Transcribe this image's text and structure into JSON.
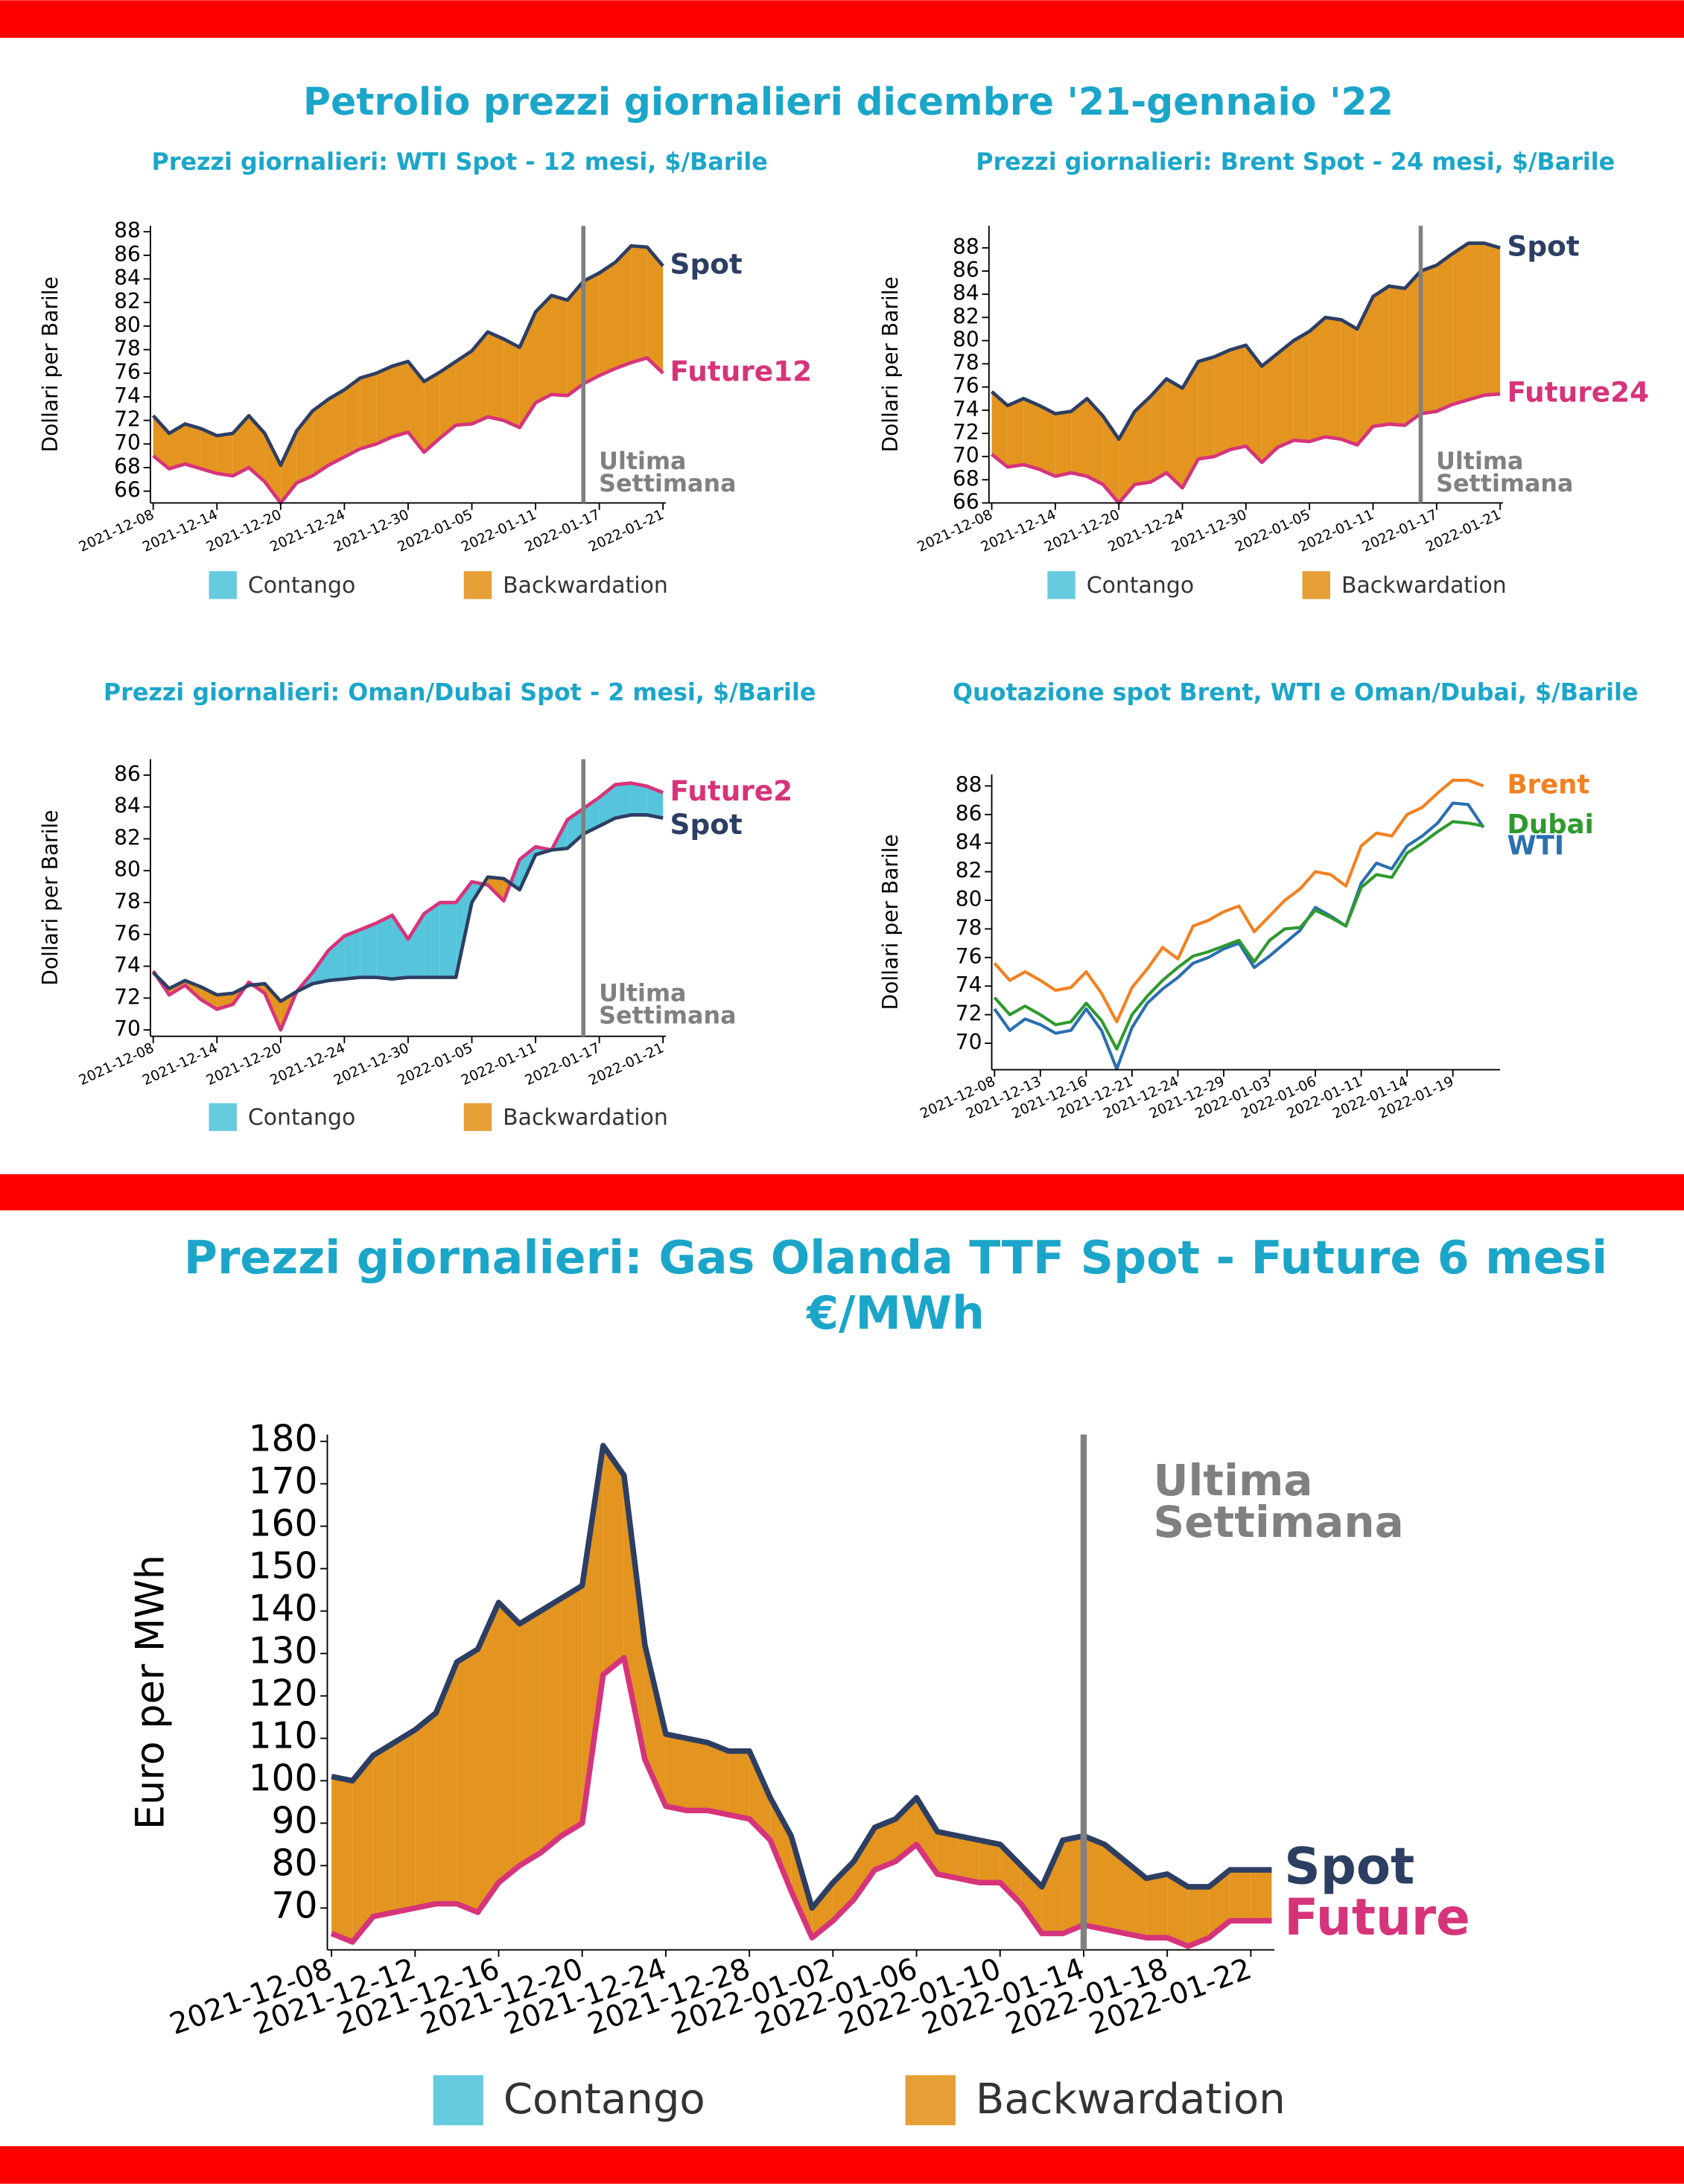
{
  "title": "Petrolio prezzi giornalieri dicembre '21-gennaio '22",
  "chart_data": [
    {
      "type": "spread",
      "title": "Prezzi giornalieri: WTI Spot - 12 mesi, $/Barile",
      "y_label": "Dollari per Barile",
      "categories": [
        "2021-12-08",
        null,
        null,
        null,
        "2021-12-14",
        null,
        null,
        null,
        "2021-12-20",
        null,
        null,
        null,
        "2021-12-24",
        null,
        null,
        null,
        "2021-12-30",
        null,
        null,
        null,
        "2022-01-05",
        null,
        null,
        null,
        "2022-01-11",
        null,
        null,
        null,
        "2022-01-17",
        null,
        null,
        null,
        "2022-01-21"
      ],
      "series": [
        {
          "name": "Spot",
          "color": "#2d3e63",
          "values": [
            72.4,
            70.9,
            71.7,
            71.3,
            70.7,
            70.9,
            72.4,
            70.9,
            68.2,
            71.1,
            72.8,
            73.8,
            74.6,
            75.6,
            76.0,
            76.6,
            77.0,
            75.3,
            76.1,
            77.0,
            77.9,
            79.5,
            78.9,
            78.2,
            81.2,
            82.6,
            82.2,
            83.8,
            84.5,
            85.4,
            86.8,
            86.7,
            85.1
          ]
        },
        {
          "name": "Future12",
          "color": "#d6347a",
          "values": [
            69.0,
            67.9,
            68.3,
            67.9,
            67.5,
            67.3,
            68.0,
            66.8,
            65.0,
            66.7,
            67.3,
            68.2,
            68.9,
            69.6,
            70.0,
            70.6,
            71.0,
            69.3,
            70.5,
            71.6,
            71.7,
            72.3,
            72.0,
            71.4,
            73.5,
            74.2,
            74.1,
            75.1,
            75.8,
            76.4,
            76.9,
            77.3,
            76.0
          ]
        }
      ],
      "ylim": [
        65,
        88.5
      ],
      "yticks": [
        66,
        68,
        70,
        72,
        74,
        76,
        78,
        80,
        82,
        84,
        86,
        88
      ],
      "annotation": [
        "Ultima",
        "Settimana"
      ],
      "legend": [
        {
          "name": "Contango",
          "color": "#56c5dc"
        },
        {
          "name": "Backwardation",
          "color": "#e39520"
        }
      ]
    },
    {
      "type": "spread",
      "title": "Prezzi giornalieri: Brent Spot - 24 mesi, $/Barile",
      "y_label": "Dollari per Barile",
      "categories": [
        "2021-12-08",
        null,
        null,
        null,
        "2021-12-14",
        null,
        null,
        null,
        "2021-12-20",
        null,
        null,
        null,
        "2021-12-24",
        null,
        null,
        null,
        "2021-12-30",
        null,
        null,
        null,
        "2022-01-05",
        null,
        null,
        null,
        "2022-01-11",
        null,
        null,
        null,
        "2022-01-17",
        null,
        null,
        null,
        "2022-01-21"
      ],
      "series": [
        {
          "name": "Spot",
          "color": "#2d3e63",
          "values": [
            75.6,
            74.4,
            75.0,
            74.4,
            73.7,
            73.9,
            75.0,
            73.5,
            71.5,
            73.9,
            75.2,
            76.7,
            75.9,
            78.2,
            78.6,
            79.2,
            79.6,
            77.8,
            78.9,
            80.0,
            80.8,
            82.0,
            81.8,
            81.0,
            83.8,
            84.7,
            84.5,
            86.0,
            86.5,
            87.5,
            88.4,
            88.4,
            88.0
          ]
        },
        {
          "name": "Future24",
          "color": "#d6347a",
          "values": [
            70.2,
            69.1,
            69.3,
            68.9,
            68.3,
            68.6,
            68.3,
            67.6,
            66.0,
            67.6,
            67.8,
            68.6,
            67.3,
            69.8,
            70.0,
            70.6,
            70.9,
            69.5,
            70.8,
            71.4,
            71.3,
            71.7,
            71.5,
            71.0,
            72.6,
            72.8,
            72.7,
            73.7,
            73.9,
            74.5,
            74.9,
            75.3,
            75.4
          ]
        }
      ],
      "ylim": [
        66,
        89.9
      ],
      "yticks": [
        66,
        68,
        70,
        72,
        74,
        76,
        78,
        80,
        82,
        84,
        86,
        88
      ],
      "annotation": [
        "Ultima",
        "Settimana"
      ],
      "legend": [
        {
          "name": "Contango",
          "color": "#56c5dc"
        },
        {
          "name": "Backwardation",
          "color": "#e39520"
        }
      ]
    },
    {
      "type": "spread",
      "title": "Prezzi giornalieri: Oman/Dubai Spot - 2 mesi, $/Barile",
      "y_label": "Dollari per Barile",
      "categories": [
        "2021-12-08",
        null,
        null,
        null,
        "2021-12-14",
        null,
        null,
        null,
        "2021-12-20",
        null,
        null,
        null,
        "2021-12-24",
        null,
        null,
        null,
        "2021-12-30",
        null,
        null,
        null,
        "2022-01-05",
        null,
        null,
        null,
        "2022-01-11",
        null,
        null,
        null,
        "2022-01-17",
        null,
        null,
        null,
        "2022-01-21"
      ],
      "series": [
        {
          "name": "Spot",
          "color": "#2d3e63",
          "values": [
            73.6,
            72.6,
            73.1,
            72.7,
            72.2,
            72.3,
            72.8,
            72.9,
            71.8,
            72.4,
            72.9,
            73.1,
            73.2,
            73.3,
            73.3,
            73.2,
            73.3,
            73.3,
            73.3,
            73.3,
            78.0,
            79.6,
            79.5,
            78.8,
            81.0,
            81.3,
            81.4,
            82.3,
            82.8,
            83.3,
            83.5,
            83.5,
            83.3
          ]
        },
        {
          "name": "Future2",
          "color": "#d6347a",
          "values": [
            73.7,
            72.2,
            72.8,
            71.9,
            71.3,
            71.6,
            73.0,
            72.3,
            70.0,
            72.4,
            73.6,
            75.0,
            75.9,
            76.3,
            76.7,
            77.2,
            75.7,
            77.3,
            78.0,
            78.0,
            79.3,
            79.1,
            78.1,
            80.7,
            81.5,
            81.3,
            83.2,
            83.9,
            84.6,
            85.4,
            85.5,
            85.3,
            84.9
          ]
        }
      ],
      "ylim": [
        69.6,
        87
      ],
      "yticks": [
        70,
        72,
        74,
        76,
        78,
        80,
        82,
        84,
        86
      ],
      "annotation": [
        "Ultima",
        "Settimana"
      ],
      "legend": [
        {
          "name": "Contango",
          "color": "#56c5dc"
        },
        {
          "name": "Backwardation",
          "color": "#e39520"
        }
      ]
    },
    {
      "type": "line",
      "title": "Quotazione spot Brent, WTI e Oman/Dubai, $/Barile",
      "y_label": "Dollari per Barile",
      "categories": [
        "2021-12-08",
        null,
        null,
        "2021-12-13",
        null,
        null,
        "2021-12-16",
        null,
        null,
        "2021-12-21",
        null,
        null,
        "2021-12-24",
        null,
        null,
        "2021-12-29",
        null,
        null,
        "2022-01-03",
        null,
        null,
        "2022-01-06",
        null,
        null,
        "2022-01-11",
        null,
        null,
        "2022-01-14",
        null,
        null,
        "2022-01-19",
        null,
        null
      ],
      "series": [
        {
          "name": "Brent",
          "color": "#f28120",
          "values": [
            75.6,
            74.4,
            75.0,
            74.4,
            73.7,
            73.9,
            75.0,
            73.5,
            71.5,
            73.9,
            75.2,
            76.7,
            75.9,
            78.2,
            78.6,
            79.2,
            79.6,
            77.8,
            78.9,
            80.0,
            80.8,
            82.0,
            81.8,
            81.0,
            83.8,
            84.7,
            84.5,
            86.0,
            86.5,
            87.5,
            88.4,
            88.4,
            88.0
          ]
        },
        {
          "name": "WTI",
          "color": "#2a6fb0",
          "values": [
            72.4,
            70.9,
            71.7,
            71.3,
            70.7,
            70.9,
            72.4,
            70.9,
            68.2,
            71.1,
            72.8,
            73.8,
            74.6,
            75.6,
            76.0,
            76.6,
            77.0,
            75.3,
            76.1,
            77.0,
            77.9,
            79.5,
            78.9,
            78.2,
            81.2,
            82.6,
            82.2,
            83.8,
            84.5,
            85.4,
            86.8,
            86.7,
            85.1
          ]
        },
        {
          "name": "Dubai",
          "color": "#2e9a2e",
          "values": [
            73.2,
            72.0,
            72.6,
            72.0,
            71.3,
            71.5,
            72.8,
            71.6,
            69.6,
            72.0,
            73.3,
            74.4,
            75.3,
            76.1,
            76.4,
            76.8,
            77.2,
            75.7,
            77.2,
            78.0,
            78.1,
            79.3,
            78.8,
            78.2,
            80.9,
            81.8,
            81.6,
            83.3,
            84.0,
            84.8,
            85.5,
            85.4,
            85.2
          ]
        }
      ],
      "ylim": [
        68.15,
        88.8
      ],
      "yticks": [
        70,
        72,
        74,
        76,
        78,
        80,
        82,
        84,
        86,
        88
      ]
    },
    {
      "type": "spread",
      "title": [
        "Prezzi giornalieri: Gas Olanda TTF Spot - Future 6 mesi",
        "€/MWh"
      ],
      "y_label": "Euro per MWh",
      "categories": [
        "2021-12-08",
        null,
        null,
        null,
        "2021-12-12",
        null,
        null,
        null,
        "2021-12-16",
        null,
        null,
        null,
        "2021-12-20",
        null,
        null,
        null,
        "2021-12-24",
        null,
        null,
        null,
        "2021-12-28",
        null,
        null,
        null,
        "2022-01-02",
        null,
        null,
        null,
        "2022-01-06",
        null,
        null,
        null,
        "2022-01-10",
        null,
        null,
        null,
        "2022-01-14",
        null,
        null,
        null,
        "2022-01-18",
        null,
        null,
        null,
        "2022-01-22",
        null
      ],
      "series": [
        {
          "name": "Spot",
          "color": "#2d3e63",
          "values": [
            101,
            100,
            106,
            109,
            112,
            116,
            128,
            131,
            142,
            137,
            140,
            143,
            146,
            179,
            172,
            132,
            111,
            110,
            109,
            107,
            107,
            96,
            87,
            70,
            76,
            81,
            89,
            91,
            96,
            88,
            87,
            86,
            85,
            80,
            75,
            86,
            87,
            85,
            81,
            77,
            78,
            75,
            75,
            79,
            79,
            79
          ]
        },
        {
          "name": "Future",
          "color": "#d6347a",
          "values": [
            64,
            62,
            68,
            69,
            70,
            71,
            71,
            69,
            76,
            80,
            83,
            87,
            90,
            125,
            129,
            105,
            94,
            93,
            93,
            92,
            91,
            86,
            74,
            63,
            67,
            72,
            79,
            81,
            85,
            78,
            77,
            76,
            76,
            71,
            64,
            64,
            66,
            65,
            64,
            63,
            63,
            61,
            63,
            67,
            67,
            67
          ]
        }
      ],
      "ylim": [
        60.15,
        181.6
      ],
      "yticks": [
        70,
        80,
        90,
        100,
        110,
        120,
        130,
        140,
        150,
        160,
        170,
        180
      ],
      "annotation": [
        "Ultima",
        "Settimana"
      ],
      "legend": [
        {
          "name": "Contango",
          "color": "#56c5dc"
        },
        {
          "name": "Backwardation",
          "color": "#e39520"
        }
      ]
    }
  ]
}
